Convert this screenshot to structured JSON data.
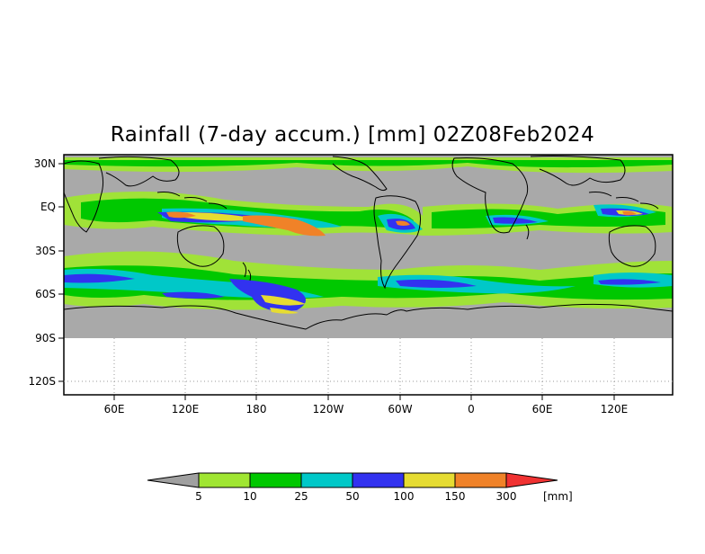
{
  "title": "Rainfall (7-day accum.) [mm] 02Z08Feb2024",
  "map": {
    "lat_labels": [
      "30N",
      "EQ",
      "30S",
      "60S",
      "90S",
      "120S"
    ],
    "lon_labels": [
      "60E",
      "120E",
      "180",
      "120W",
      "60W",
      "0",
      "60E",
      "120E"
    ],
    "colors": {
      "land_nodata": "#a9a9a9",
      "background": "#ffffff",
      "coastline": "#000000",
      "grid": "#9a9a9a"
    }
  },
  "colorbar": {
    "unit": "[mm]",
    "thresholds": [
      "5",
      "10",
      "25",
      "50",
      "100",
      "150",
      "300"
    ],
    "colors": [
      "#a0a0a0",
      "#a0e632",
      "#00c800",
      "#00c8c8",
      "#3232f0",
      "#e6dc32",
      "#f08228",
      "#f03232"
    ]
  }
}
